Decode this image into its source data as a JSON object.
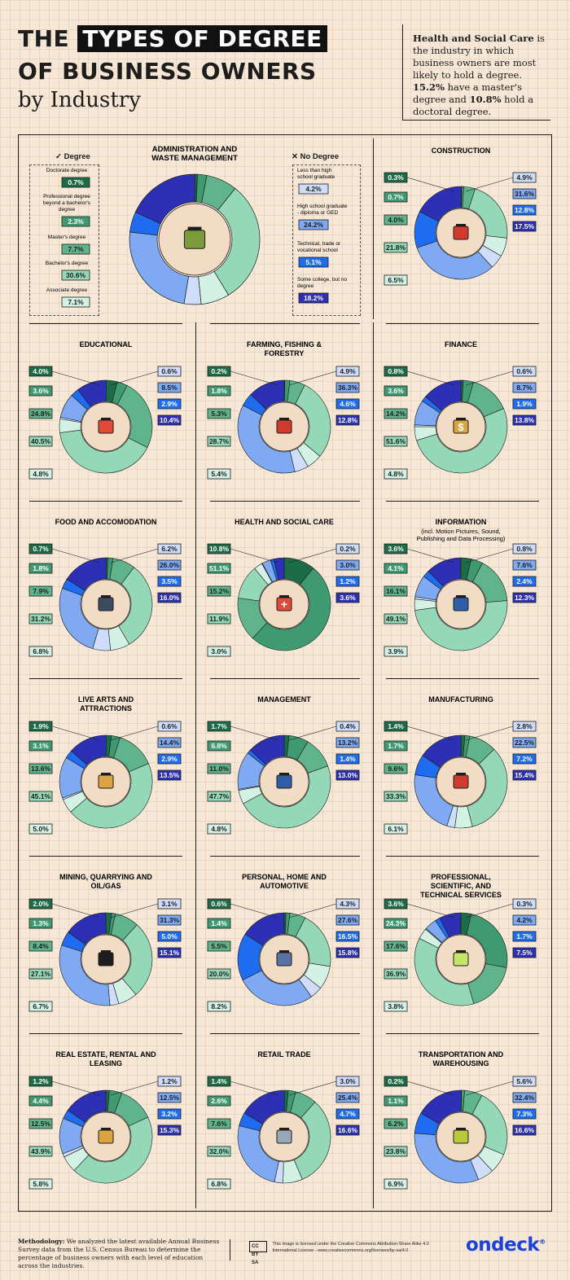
{
  "header": {
    "title_part1": "THE ",
    "title_highlight": "TYPES OF DEGREE",
    "title_line2": "OF BUSINESS OWNERS",
    "subtitle": "by Industry"
  },
  "intro": {
    "p1": "Health and Social Care",
    "p2": " is the industry in which business owners are most likely to hold a degree. ",
    "p3": "15.2%",
    "p4": " have a master's degree and ",
    "p5": "10.8%",
    "p6": " hold a doctoral degree."
  },
  "legend": {
    "degree_heading": "Degree",
    "no_degree_heading": "No Degree",
    "degree_items": [
      "Doctorate degree",
      "Professional degree beyond a bachelor's degree",
      "Master's degree",
      "Bachelor's degree",
      "Associate degree"
    ],
    "no_degree_items": [
      "Less than high school graduate",
      "High school graduate - diploma or GED",
      "Technical, trade or vocational school",
      "Some college, but no degree"
    ]
  },
  "colors": {
    "doctorate": "#1d6b47",
    "professional": "#3f9a72",
    "masters": "#5fb48b",
    "bachelors": "#95d8b8",
    "associate": "#d3f2e5",
    "less_than_hs": "#cfddfb",
    "hs_graduate": "#7fa9f3",
    "technical": "#1f6cf0",
    "some_college": "#2d2fb5",
    "label_dark_text": "#ffffff",
    "brand": "#1a42d8"
  },
  "chart_data": [
    {
      "type": "pie",
      "title": "ADMINISTRATION AND WASTE MANAGEMENT",
      "icon": "trash-bin-icon",
      "categories": [
        "Doctorate degree",
        "Professional degree beyond a bachelor's degree",
        "Master's degree",
        "Bachelor's degree",
        "Associate degree",
        "Less than high school graduate",
        "High school graduate - diploma or GED",
        "Technical, trade or vocational school",
        "Some college, but no degree"
      ],
      "values": [
        0.7,
        2.3,
        7.7,
        30.6,
        7.1,
        4.2,
        24.2,
        5.1,
        18.2
      ]
    },
    {
      "type": "pie",
      "title": "CONSTRUCTION",
      "icon": "hammer-bricks-icon",
      "values": [
        0.3,
        0.7,
        4.0,
        21.8,
        6.5,
        4.9,
        31.6,
        12.8,
        17.5
      ]
    },
    {
      "type": "pie",
      "title": "EDUCATIONAL",
      "icon": "graduation-cap-icon",
      "values": [
        4.0,
        3.6,
        24.8,
        40.5,
        4.8,
        0.6,
        8.5,
        2.9,
        10.4
      ]
    },
    {
      "type": "pie",
      "title": "FARMING, FISHING & FORESTRY",
      "icon": "tractor-icon",
      "values": [
        0.2,
        1.8,
        5.3,
        28.7,
        5.4,
        4.9,
        36.3,
        4.6,
        12.8
      ]
    },
    {
      "type": "pie",
      "title": "FINANCE",
      "icon": "dollar-cycle-icon",
      "values": [
        0.8,
        3.6,
        14.2,
        51.6,
        4.8,
        0.6,
        8.7,
        1.9,
        13.8
      ]
    },
    {
      "type": "pie",
      "title": "FOOD AND ACCOMODATION",
      "icon": "cloche-icon",
      "values": [
        0.7,
        1.8,
        7.9,
        31.2,
        6.8,
        6.2,
        26.0,
        3.5,
        16.0
      ]
    },
    {
      "type": "pie",
      "title": "HEALTH AND SOCIAL CARE",
      "icon": "first-aid-kit-icon",
      "values": [
        10.8,
        51.1,
        15.2,
        11.9,
        3.0,
        0.2,
        3.0,
        1.2,
        3.6
      ]
    },
    {
      "type": "pie",
      "title": "INFORMATION",
      "subtitle": "(incl. Motion Pictures, Sound, Publishing and Data Processing)",
      "icon": "server-icon",
      "values": [
        3.6,
        4.1,
        16.1,
        49.1,
        3.9,
        0.8,
        7.6,
        2.4,
        12.3
      ]
    },
    {
      "type": "pie",
      "title": "LIVE ARTS AND ATTRACTIONS",
      "icon": "paint-palette-icon",
      "values": [
        1.9,
        3.1,
        13.6,
        45.1,
        5.0,
        0.6,
        14.4,
        2.9,
        13.5
      ]
    },
    {
      "type": "pie",
      "title": "MANAGEMENT",
      "icon": "manager-icon",
      "values": [
        1.7,
        6.8,
        11.0,
        47.7,
        4.8,
        0.4,
        13.2,
        1.4,
        13.0
      ]
    },
    {
      "type": "pie",
      "title": "MANUFACTURING",
      "icon": "factory-icon",
      "values": [
        1.4,
        1.7,
        9.6,
        33.3,
        6.1,
        2.8,
        22.5,
        7.2,
        15.4
      ]
    },
    {
      "type": "pie",
      "title": "MINING, QUARRYING AND OIL/GAS",
      "icon": "oil-barrel-icon",
      "values": [
        2.0,
        1.3,
        8.4,
        27.1,
        6.7,
        3.1,
        31.3,
        5.0,
        15.1
      ]
    },
    {
      "type": "pie",
      "title": "PERSONAL, HOME AND AUTOMOTIVE",
      "icon": "van-icon",
      "values": [
        0.6,
        1.4,
        5.5,
        20.0,
        8.2,
        4.3,
        27.6,
        16.5,
        15.8
      ]
    },
    {
      "type": "pie",
      "title": "PROFESSIONAL, SCIENTIFIC, AND TECHNICAL SERVICES",
      "icon": "light-bulb-icon",
      "values": [
        3.6,
        24.3,
        17.6,
        36.9,
        3.8,
        0.3,
        4.2,
        1.7,
        7.5
      ]
    },
    {
      "type": "pie",
      "title": "REAL ESTATE, RENTAL AND LEASING",
      "icon": "buildings-icon",
      "values": [
        1.2,
        4.4,
        12.5,
        43.9,
        5.8,
        1.2,
        12.5,
        3.2,
        15.3
      ]
    },
    {
      "type": "pie",
      "title": "RETAIL TRADE",
      "icon": "shopping-cart-icon",
      "values": [
        1.4,
        2.6,
        7.6,
        32.0,
        6.8,
        3.0,
        25.4,
        4.7,
        16.6
      ]
    },
    {
      "type": "pie",
      "title": "TRANSPORTATION AND WAREHOUSING",
      "icon": "forklift-icon",
      "values": [
        0.2,
        1.1,
        6.2,
        23.8,
        6.9,
        5.6,
        32.4,
        7.3,
        16.6
      ]
    }
  ],
  "footer": {
    "methodology_label": "Methodology:",
    "methodology_text": "We analyzed the latest available Annual Business Survey data from the U.S. Census Bureau to determine the percentage of business owners with each level of education across the industries.",
    "license_text": "This image is licensed under the Creative Commons Attribution-Share Alike 4.0 International License - www.creativecommons.org/licenses/by-sa/4.0",
    "brand": "ondeck"
  }
}
